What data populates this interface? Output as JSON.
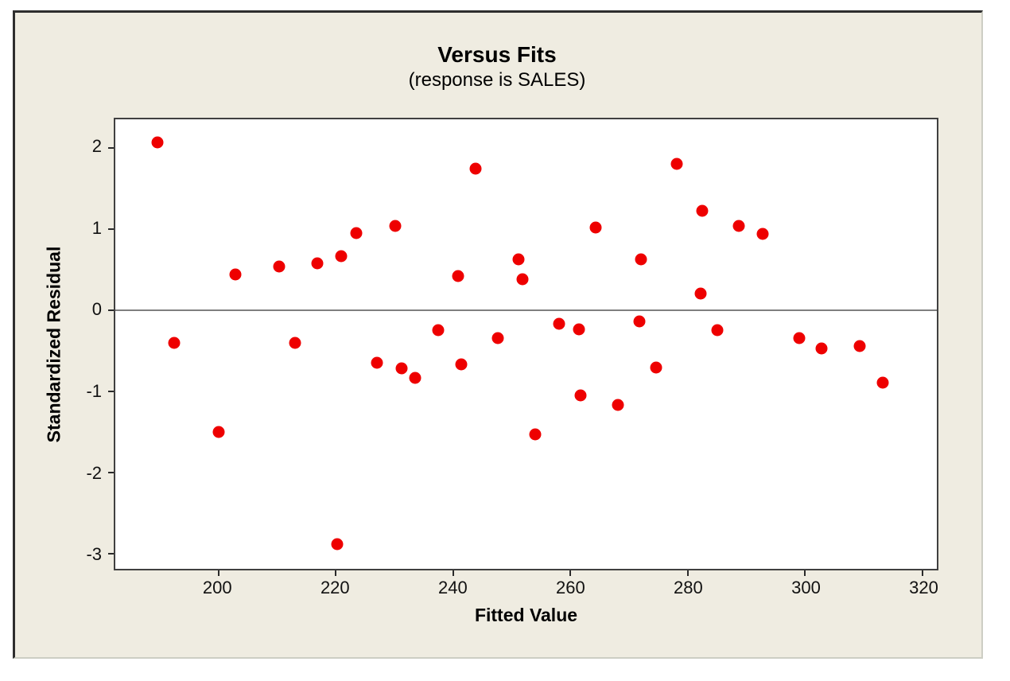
{
  "figure": {
    "title": "Versus Fits",
    "subtitle": "(response is SALES)",
    "xlabel": "Fitted Value",
    "ylabel": "Standardized Residual"
  },
  "colors": {
    "marker": "#EE0000",
    "panel_background": "#EFECE1",
    "plot_background": "#FFFFFF",
    "plot_border": "#404040",
    "zero_line": "#7F7F7F",
    "frame_dark": "#2E2E2E",
    "frame_light": "#CDCEC4",
    "text": "#000000"
  },
  "chart_data": {
    "type": "scatter",
    "title": "Versus Fits",
    "subtitle": "(response is SALES)",
    "xlabel": "Fitted Value",
    "ylabel": "Standardized Residual",
    "x_ticks": [
      200,
      220,
      240,
      260,
      280,
      300,
      320
    ],
    "y_ticks": [
      2,
      1,
      0,
      -1,
      -2,
      -3
    ],
    "x_range": [
      182.4,
      322.5
    ],
    "y_range": [
      -3.19,
      2.35
    ],
    "reference_line_y": 0,
    "grid": false,
    "legend": false,
    "points": [
      [
        189.6,
        2.07
      ],
      [
        192.5,
        -0.41
      ],
      [
        200.0,
        -1.5
      ],
      [
        202.9,
        0.44
      ],
      [
        210.3,
        0.54
      ],
      [
        213.1,
        -0.41
      ],
      [
        216.9,
        0.58
      ],
      [
        220.3,
        -2.89
      ],
      [
        220.9,
        0.66
      ],
      [
        223.5,
        0.95
      ],
      [
        227.0,
        -0.65
      ],
      [
        230.2,
        1.04
      ],
      [
        231.2,
        -0.72
      ],
      [
        233.5,
        -0.84
      ],
      [
        237.5,
        -0.25
      ],
      [
        240.9,
        0.42
      ],
      [
        241.4,
        -0.67
      ],
      [
        243.8,
        1.74
      ],
      [
        247.7,
        -0.35
      ],
      [
        251.2,
        0.62
      ],
      [
        251.8,
        0.38
      ],
      [
        254.0,
        -1.53
      ],
      [
        258.1,
        -0.17
      ],
      [
        261.5,
        -0.24
      ],
      [
        261.8,
        -1.05
      ],
      [
        264.3,
        1.02
      ],
      [
        268.1,
        -1.17
      ],
      [
        271.8,
        -0.14
      ],
      [
        272.0,
        0.62
      ],
      [
        274.6,
        -0.71
      ],
      [
        278.2,
        1.8
      ],
      [
        282.2,
        0.2
      ],
      [
        282.5,
        1.22
      ],
      [
        285.0,
        -0.25
      ],
      [
        288.7,
        1.04
      ],
      [
        292.8,
        0.94
      ],
      [
        299.0,
        -0.35
      ],
      [
        302.9,
        -0.47
      ],
      [
        309.3,
        -0.44
      ],
      [
        313.3,
        -0.9
      ]
    ]
  }
}
